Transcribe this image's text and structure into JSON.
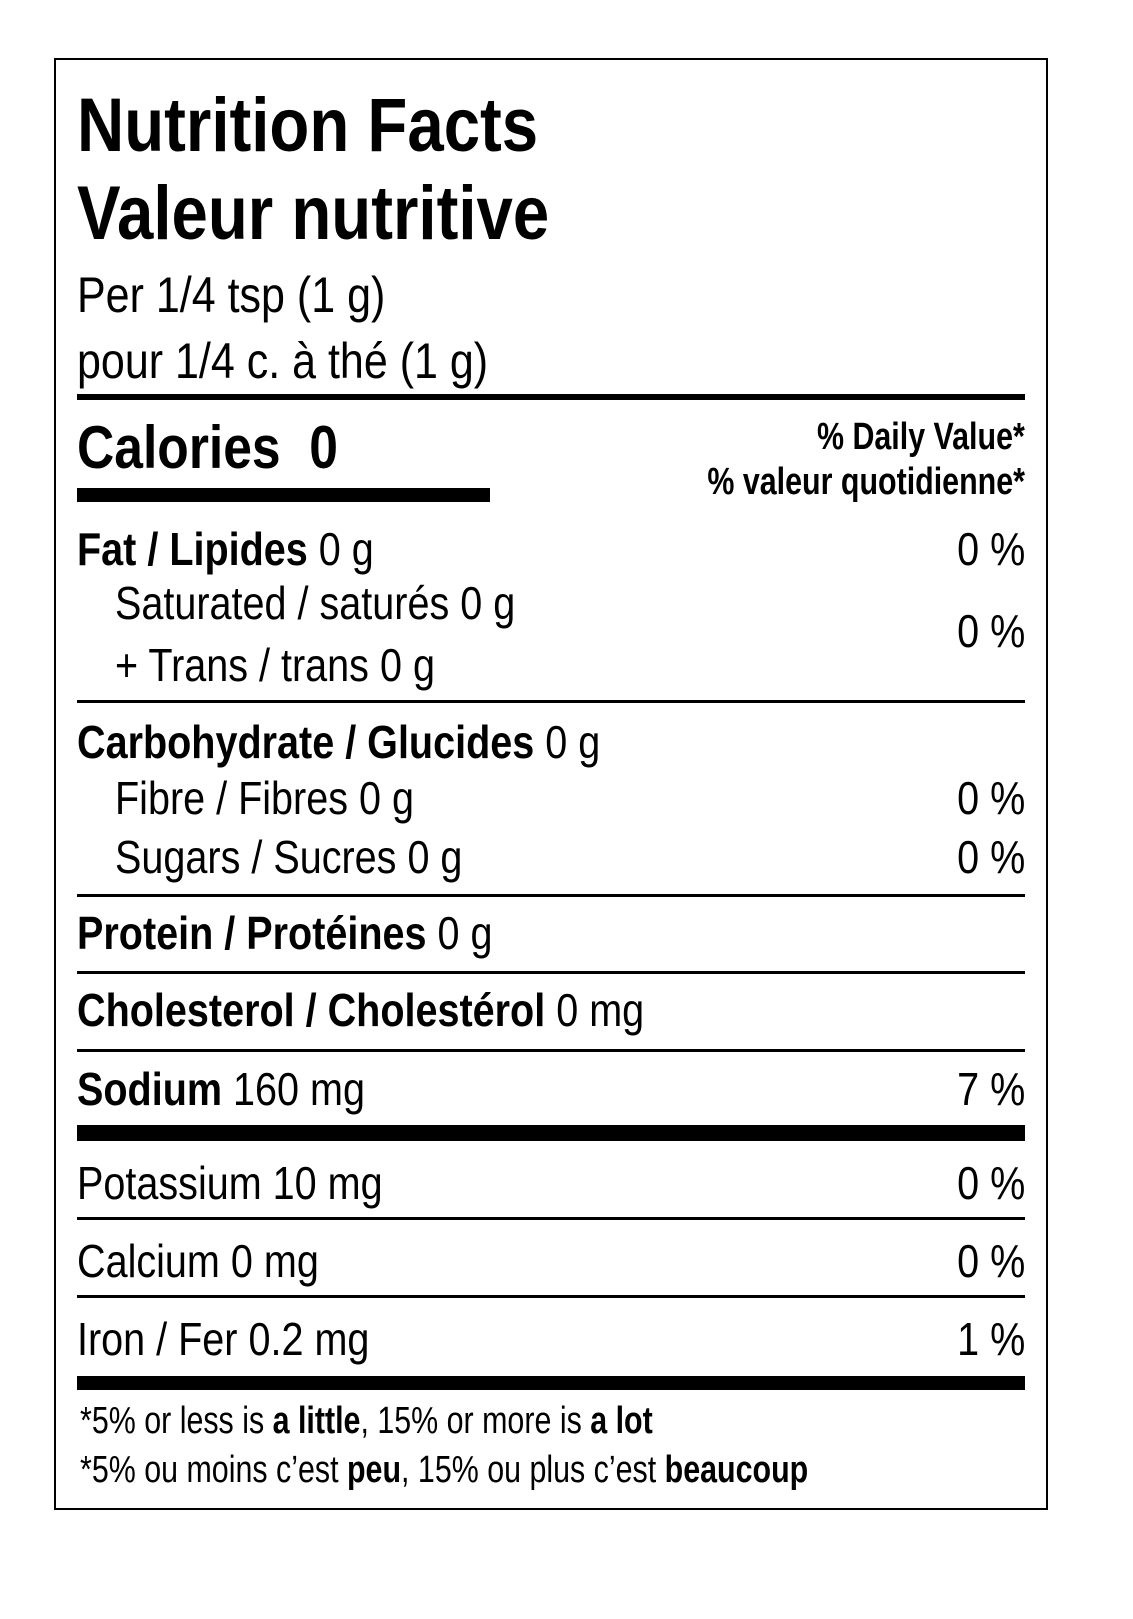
{
  "title_en": "Nutrition Facts",
  "title_fr": "Valeur nutritive",
  "serving_en": "Per 1/4 tsp (1 g)",
  "serving_fr": "pour 1/4 c. à thé (1 g)",
  "calories_label": "Calories",
  "calories_value": "0",
  "dv_header_en": "% Daily Value*",
  "dv_header_fr": "% valeur quotidienne*",
  "nutrients": {
    "fat": {
      "label": "Fat / Lipides",
      "amount": "0 g",
      "dv": "0 %"
    },
    "saturated": {
      "label": "Saturated / saturés",
      "amount": "0 g"
    },
    "trans": {
      "label": "+ Trans / trans",
      "amount": "0 g"
    },
    "sat_trans_dv": "0 %",
    "carbohydrate": {
      "label": "Carbohydrate / Glucides",
      "amount": "0 g"
    },
    "fibre": {
      "label": "Fibre / Fibres",
      "amount": "0 g",
      "dv": "0 %"
    },
    "sugars": {
      "label": "Sugars / Sucres",
      "amount": "0 g",
      "dv": "0 %"
    },
    "protein": {
      "label": "Protein / Protéines",
      "amount": "0 g"
    },
    "cholesterol": {
      "label": "Cholesterol / Cholestérol",
      "amount": "0 mg"
    },
    "sodium": {
      "label": "Sodium",
      "amount": "160 mg",
      "dv": "7 %"
    },
    "potassium": {
      "label": "Potassium",
      "amount": "10 mg",
      "dv": "0 %"
    },
    "calcium": {
      "label": "Calcium",
      "amount": "0 mg",
      "dv": "0 %"
    },
    "iron": {
      "label": "Iron / Fer",
      "amount": "0.2 mg",
      "dv": "1 %"
    }
  },
  "footnote": {
    "en": {
      "pre": "*5% or less is ",
      "b1": "a little",
      "mid": ", 15% or more is ",
      "b2": "a lot"
    },
    "fr": {
      "pre": "*5% ou moins c’est ",
      "b1": "peu",
      "mid": ", 15% ou plus c’est ",
      "b2": "beaucoup"
    }
  }
}
